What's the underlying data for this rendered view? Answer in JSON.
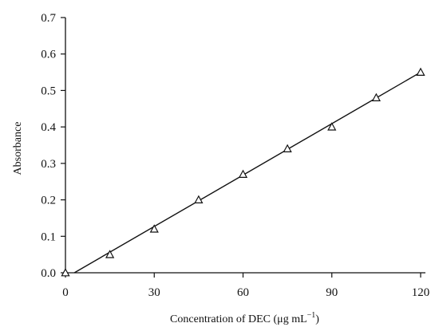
{
  "chart_data": {
    "type": "scatter",
    "title": "",
    "xlabel": "Concentration of DEC (μg mL",
    "xlabel_superscript": "−1",
    "xlabel_suffix": ")",
    "ylabel": "Absorbance",
    "xlim": [
      0,
      120
    ],
    "ylim": [
      0,
      0.7
    ],
    "x_ticks": [
      0,
      30,
      60,
      90,
      120
    ],
    "y_ticks": [
      0.0,
      0.1,
      0.2,
      0.3,
      0.4,
      0.5,
      0.6,
      0.7
    ],
    "x_tick_labels": [
      "0",
      "30",
      "60",
      "90",
      "120"
    ],
    "y_tick_labels": [
      "0.0",
      "0.1",
      "0.2",
      "0.3",
      "0.4",
      "0.5",
      "0.6",
      "0.7"
    ],
    "grid": false,
    "legend": "none",
    "marker": "open-triangle",
    "series": [
      {
        "x": [
          0,
          15,
          30,
          45,
          60,
          75,
          90,
          105,
          120
        ],
        "y": [
          0.0,
          0.05,
          0.12,
          0.2,
          0.27,
          0.34,
          0.4,
          0.48,
          0.55
        ]
      }
    ],
    "fit_line": {
      "x": [
        3,
        120
      ],
      "y": [
        0.0,
        0.55
      ]
    },
    "colors": {
      "axis": "#111111",
      "line": "#111111",
      "marker_stroke": "#111111",
      "background": "#ffffff"
    }
  }
}
